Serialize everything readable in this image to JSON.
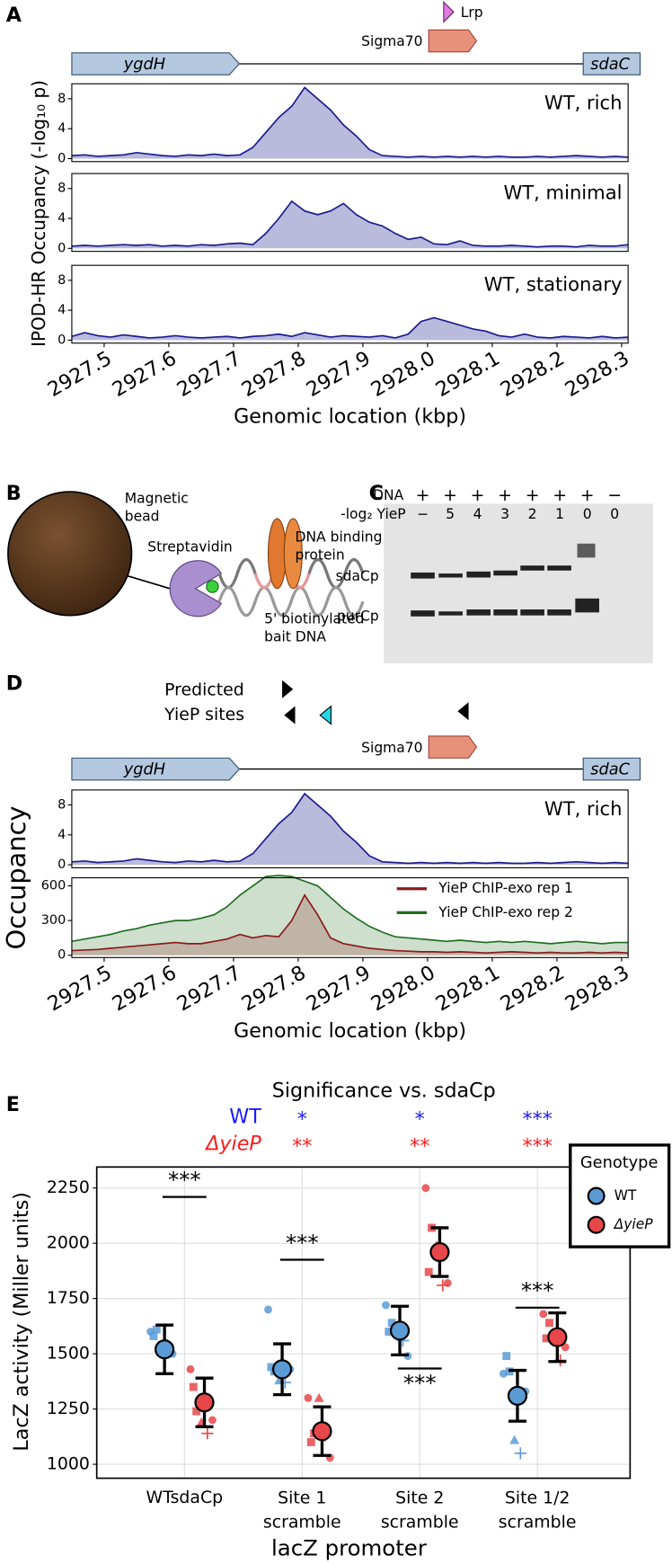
{
  "panel_labels": [
    "A",
    "B",
    "C",
    "D",
    "E"
  ],
  "gene_track": {
    "genes": [
      "ygdH",
      "sdaC"
    ],
    "promoter": "Sigma70",
    "factor": "Lrp"
  },
  "panel_b": {
    "bead": [
      "Magnetic",
      "bead"
    ],
    "streptavidin": "Streptavidin",
    "protein": [
      "DNA binding",
      "protein"
    ],
    "bait": [
      "5' biotinylated",
      "bait DNA"
    ]
  },
  "panel_c": {
    "row_labels": [
      "DNA",
      "-log₂ YieP"
    ],
    "dna": [
      "+",
      "+",
      "+",
      "+",
      "+",
      "+",
      "+",
      "−"
    ],
    "yiep": [
      "−",
      "5",
      "4",
      "3",
      "2",
      "1",
      "0",
      "0"
    ],
    "band_labels": [
      "sdaCp",
      "purCp"
    ]
  },
  "panel_d": {
    "sites_label": [
      "Predicted",
      "YieP sites"
    ],
    "genes": [
      "ygdH",
      "sdaC"
    ],
    "promoter": "Sigma70"
  },
  "chart_data": [
    {
      "type": "area",
      "annotation": "WT, rich",
      "color": "#1a1a8c",
      "x": [
        2927.45,
        2927.47,
        2927.49,
        2927.51,
        2927.53,
        2927.55,
        2927.57,
        2927.59,
        2927.61,
        2927.63,
        2927.65,
        2927.67,
        2927.69,
        2927.71,
        2927.73,
        2927.75,
        2927.77,
        2927.79,
        2927.81,
        2927.83,
        2927.85,
        2927.87,
        2927.89,
        2927.91,
        2927.93,
        2927.95,
        2927.97,
        2927.99,
        2928.01,
        2928.03,
        2928.05,
        2928.07,
        2928.09,
        2928.11,
        2928.13,
        2928.15,
        2928.17,
        2928.19,
        2928.21,
        2928.23,
        2928.25,
        2928.27,
        2928.29,
        2928.31
      ],
      "values": [
        0.4,
        0.5,
        0.3,
        0.4,
        0.5,
        0.8,
        0.6,
        0.4,
        0.3,
        0.5,
        0.4,
        0.6,
        0.4,
        0.5,
        1.5,
        3.5,
        5.5,
        7,
        9.5,
        8,
        6.5,
        4.5,
        3,
        1.2,
        0.4,
        0.3,
        0.2,
        0.3,
        0.2,
        0.3,
        0.2,
        0.3,
        0.2,
        0.3,
        0.2,
        0.2,
        0.3,
        0.2,
        0.3,
        0.4,
        0.3,
        0.2,
        0.3,
        0.2
      ],
      "xlim": [
        2927.45,
        2928.31
      ],
      "ylim": [
        -0.4,
        10
      ],
      "yticks": [
        0,
        4,
        8
      ]
    },
    {
      "type": "area",
      "annotation": "WT, minimal",
      "color": "#1a1a8c",
      "x": [
        2927.45,
        2927.47,
        2927.49,
        2927.51,
        2927.53,
        2927.55,
        2927.57,
        2927.59,
        2927.61,
        2927.63,
        2927.65,
        2927.67,
        2927.69,
        2927.71,
        2927.73,
        2927.75,
        2927.77,
        2927.79,
        2927.81,
        2927.83,
        2927.85,
        2927.87,
        2927.89,
        2927.91,
        2927.93,
        2927.95,
        2927.97,
        2927.99,
        2928.01,
        2928.03,
        2928.05,
        2928.07,
        2928.09,
        2928.11,
        2928.13,
        2928.15,
        2928.17,
        2928.19,
        2928.21,
        2928.23,
        2928.25,
        2928.27,
        2928.29,
        2928.31
      ],
      "values": [
        0.3,
        0.4,
        0.3,
        0.4,
        0.5,
        0.4,
        0.5,
        0.3,
        0.4,
        0.3,
        0.5,
        0.4,
        0.6,
        0.7,
        0.5,
        2,
        4,
        6.3,
        5,
        4.5,
        5,
        6,
        4.5,
        3.5,
        3,
        2,
        1.2,
        1.5,
        0.6,
        0.5,
        1,
        0.4,
        0.3,
        0.3,
        0.4,
        0.3,
        0.2,
        0.3,
        0.3,
        0.2,
        0.4,
        0.3,
        0.3,
        0.5
      ],
      "xlim": [
        2927.45,
        2928.31
      ],
      "ylim": [
        -0.4,
        10
      ],
      "yticks": [
        0,
        4,
        8
      ]
    },
    {
      "type": "area",
      "annotation": "WT, stationary",
      "color": "#1a1a8c",
      "x": [
        2927.45,
        2927.47,
        2927.49,
        2927.51,
        2927.53,
        2927.55,
        2927.57,
        2927.59,
        2927.61,
        2927.63,
        2927.65,
        2927.67,
        2927.69,
        2927.71,
        2927.73,
        2927.75,
        2927.77,
        2927.79,
        2927.81,
        2927.83,
        2927.85,
        2927.87,
        2927.89,
        2927.91,
        2927.93,
        2927.95,
        2927.97,
        2927.99,
        2928.01,
        2928.03,
        2928.05,
        2928.07,
        2928.09,
        2928.11,
        2928.13,
        2928.15,
        2928.17,
        2928.19,
        2928.21,
        2928.23,
        2928.25,
        2928.27,
        2928.29,
        2928.31
      ],
      "values": [
        0.5,
        1,
        0.6,
        0.4,
        0.7,
        0.5,
        0.3,
        0.4,
        0.6,
        0.4,
        0.3,
        0.4,
        0.5,
        0.3,
        0.5,
        0.6,
        0.8,
        0.5,
        1,
        0.7,
        0.4,
        0.6,
        0.5,
        0.4,
        0.6,
        0.3,
        0.8,
        2.5,
        3,
        2.5,
        2,
        1.5,
        1.2,
        0.6,
        0.4,
        0.8,
        0.4,
        0.3,
        0.5,
        0.4,
        0.3,
        0.5,
        0.3,
        0.4
      ],
      "xlim": [
        2927.45,
        2928.31
      ],
      "ylim": [
        -0.4,
        10
      ],
      "yticks": [
        0,
        4,
        8
      ],
      "xticks": [
        2927.5,
        2927.6,
        2927.7,
        2927.8,
        2927.9,
        {
          "value": 2928,
          "label": "2928.0"
        },
        2928.1,
        2928.2,
        2928.3
      ],
      "xlabel": "Genomic location (kbp)",
      "ylabel": "IPOD-HR Occupancy (-log₁₀ p)"
    },
    {
      "type": "area",
      "annotation": "WT, rich",
      "color": "#1a1a8c",
      "x": [
        2927.45,
        2927.47,
        2927.49,
        2927.51,
        2927.53,
        2927.55,
        2927.57,
        2927.59,
        2927.61,
        2927.63,
        2927.65,
        2927.67,
        2927.69,
        2927.71,
        2927.73,
        2927.75,
        2927.77,
        2927.79,
        2927.81,
        2927.83,
        2927.85,
        2927.87,
        2927.89,
        2927.91,
        2927.93,
        2927.95,
        2927.97,
        2927.99,
        2928.01,
        2928.03,
        2928.05,
        2928.07,
        2928.09,
        2928.11,
        2928.13,
        2928.15,
        2928.17,
        2928.19,
        2928.21,
        2928.23,
        2928.25,
        2928.27,
        2928.29,
        2928.31
      ],
      "values": [
        0.4,
        0.5,
        0.3,
        0.4,
        0.5,
        0.8,
        0.6,
        0.4,
        0.3,
        0.5,
        0.4,
        0.6,
        0.4,
        0.5,
        1.5,
        3.5,
        5.5,
        7,
        9.5,
        8,
        6.5,
        4.5,
        3,
        1.2,
        0.4,
        0.3,
        0.2,
        0.3,
        0.2,
        0.3,
        0.2,
        0.3,
        0.2,
        0.3,
        0.2,
        0.2,
        0.3,
        0.2,
        0.3,
        0.4,
        0.3,
        0.2,
        0.3,
        0.2
      ],
      "xlim": [
        2927.45,
        2928.31
      ],
      "ylim": [
        -0.4,
        10
      ],
      "yticks": [
        0,
        4,
        8
      ]
    },
    {
      "type": "area",
      "x": [
        2927.45,
        2927.47,
        2927.49,
        2927.51,
        2927.53,
        2927.55,
        2927.57,
        2927.59,
        2927.61,
        2927.63,
        2927.65,
        2927.67,
        2927.69,
        2927.71,
        2927.73,
        2927.75,
        2927.77,
        2927.79,
        2927.81,
        2927.83,
        2927.85,
        2927.87,
        2927.89,
        2927.91,
        2927.93,
        2927.95,
        2927.97,
        2927.99,
        2928.01,
        2928.03,
        2928.05,
        2928.07,
        2928.09,
        2928.11,
        2928.13,
        2928.15,
        2928.17,
        2928.19,
        2928.21,
        2928.23,
        2928.25,
        2928.27,
        2928.29,
        2928.31
      ],
      "series": [
        {
          "name": "YieP ChIP-exo rep 1",
          "color": "#8b1a1a",
          "values": [
            40,
            45,
            50,
            60,
            70,
            80,
            90,
            100,
            110,
            100,
            100,
            120,
            140,
            180,
            150,
            170,
            160,
            300,
            520,
            350,
            150,
            100,
            80,
            60,
            50,
            40,
            35,
            30,
            30,
            25,
            30,
            25,
            20,
            25,
            30,
            25,
            20,
            25,
            20,
            20,
            25,
            20,
            25,
            20
          ]
        },
        {
          "name": "YieP ChIP-exo rep 2",
          "color": "#1f6e1f",
          "values": [
            120,
            140,
            160,
            180,
            210,
            230,
            260,
            280,
            300,
            300,
            320,
            350,
            420,
            520,
            600,
            680,
            690,
            680,
            640,
            600,
            500,
            400,
            320,
            250,
            200,
            160,
            150,
            140,
            130,
            120,
            130,
            120,
            110,
            120,
            110,
            120,
            110,
            100,
            110,
            120,
            110,
            100,
            110,
            110
          ]
        }
      ],
      "xlim": [
        2927.45,
        2928.31
      ],
      "ylim": [
        -20,
        670
      ],
      "yticks": [
        0,
        300,
        600
      ],
      "xticks": [
        2927.5,
        2927.6,
        2927.7,
        2927.8,
        2927.9,
        {
          "value": 2928,
          "label": "2928.0"
        },
        2928.1,
        2928.2,
        2928.3
      ],
      "xlabel": "Genomic location (kbp)",
      "ylabel": "Occupancy",
      "legend": "upper right"
    },
    {
      "type": "errorbar",
      "title": "Significance vs. sdaCp",
      "categories": [
        "WTsdaCp",
        "Site 1\nscramble",
        "Site 2\nscramble",
        "Site 1/2\nscramble"
      ],
      "series": [
        {
          "name": "WT",
          "color": "#5b9bd5",
          "values": [
            1520,
            1430,
            1605,
            1310
          ],
          "errors": [
            110,
            115,
            110,
            115
          ],
          "points": [
            [
              1600,
              1610,
              1530,
              1540,
              1500,
              1580
            ],
            [
              1700,
              1420,
              1380,
              1370,
              1430,
              1440
            ],
            [
              1720,
              1640,
              1610,
              1560,
              1490,
              1600
            ],
            [
              1410,
              1420,
              1110,
              1050,
              1330,
              1490
            ]
          ]
        },
        {
          "name": "ΔyieP",
          "color": "#e8474a",
          "values": [
            1280,
            1150,
            1960,
            1575
          ],
          "errors": [
            110,
            110,
            110,
            110
          ],
          "points": [
            [
              1430,
              1240,
              1190,
              1140,
              1200,
              1350
            ],
            [
              1300,
              1140,
              1300,
              1130,
              1030,
              1100
            ],
            [
              2250,
              2070,
              1990,
              1810,
              1820,
              1870
            ],
            [
              1680,
              1640,
              1580,
              1470,
              1530,
              1570
            ]
          ]
        }
      ],
      "significance": [
        {
          "name": "WT",
          "color": "#1a1aff",
          "labels": [
            "*",
            "*",
            "***"
          ]
        },
        {
          "name": "ΔyieP",
          "color": "#ff1a1a",
          "labels": [
            "**",
            "**",
            "***"
          ]
        }
      ],
      "comparison_labels": [
        "***",
        "***",
        "***",
        "***"
      ],
      "ylim": [
        937,
        2345
      ],
      "yticks": [
        1000,
        1250,
        1500,
        1750,
        2000,
        2250
      ],
      "grid": true,
      "xlabel": "lacZ promoter",
      "ylabel": "LacZ activity (Miller units)",
      "legend_title": "Genotype",
      "legend": "upper right"
    }
  ]
}
